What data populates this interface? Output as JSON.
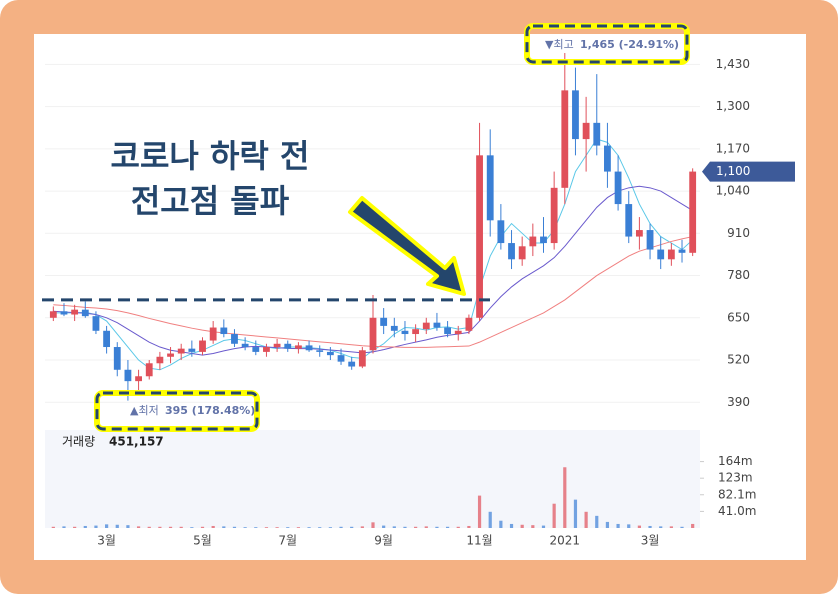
{
  "chart_data": {
    "type": "candlestick",
    "annotation_lines": [
      "코로나 하락 전",
      "전고점 돌파"
    ],
    "high_note": {
      "prefix": "▼최고",
      "text": "1,465 (-24.91%)"
    },
    "low_note": {
      "prefix": "▲최저",
      "text": "395 (178.48%)"
    },
    "volume_title": "거래량",
    "volume_info": "451,157",
    "last_price": {
      "value": 1100,
      "label": "1,100"
    },
    "reference_line": 705,
    "up_color": "#e0505a",
    "down_color": "#3a7fd5",
    "categories": [
      null,
      null,
      null,
      null,
      null,
      "3월",
      null,
      null,
      null,
      null,
      null,
      null,
      null,
      null,
      "5월",
      null,
      null,
      null,
      null,
      null,
      null,
      null,
      "7월",
      null,
      null,
      null,
      null,
      null,
      null,
      null,
      null,
      "9월",
      null,
      null,
      null,
      null,
      null,
      null,
      null,
      null,
      "11월",
      null,
      null,
      null,
      null,
      null,
      null,
      null,
      "2021",
      null,
      null,
      null,
      null,
      null,
      null,
      null,
      "3월",
      null,
      null,
      null,
      null
    ],
    "open": [
      650,
      670,
      660,
      675,
      655,
      610,
      560,
      490,
      455,
      470,
      510,
      530,
      540,
      555,
      545,
      580,
      620,
      600,
      570,
      560,
      545,
      560,
      570,
      555,
      565,
      550,
      545,
      535,
      515,
      500,
      550,
      650,
      625,
      610,
      600,
      615,
      635,
      620,
      600,
      610,
      650,
      1150,
      950,
      880,
      830,
      870,
      900,
      880,
      1050,
      1350,
      1200,
      1250,
      1180,
      1100,
      1000,
      900,
      920,
      860,
      830,
      860,
      850
    ],
    "high": [
      685,
      695,
      690,
      700,
      670,
      625,
      575,
      520,
      490,
      520,
      545,
      560,
      570,
      580,
      590,
      640,
      645,
      615,
      590,
      580,
      570,
      585,
      580,
      575,
      580,
      565,
      560,
      555,
      530,
      560,
      720,
      680,
      650,
      640,
      630,
      650,
      665,
      640,
      625,
      660,
      1250,
      1230,
      1000,
      920,
      900,
      940,
      960,
      1100,
      1465,
      1420,
      1330,
      1400,
      1250,
      1150,
      1040,
      960,
      940,
      900,
      880,
      890,
      1110
    ],
    "low": [
      640,
      655,
      640,
      650,
      600,
      540,
      470,
      395,
      420,
      460,
      490,
      510,
      520,
      530,
      535,
      570,
      590,
      560,
      550,
      535,
      530,
      545,
      545,
      540,
      545,
      530,
      520,
      505,
      490,
      495,
      540,
      600,
      590,
      580,
      575,
      600,
      610,
      590,
      580,
      600,
      640,
      900,
      860,
      800,
      810,
      840,
      850,
      860,
      1000,
      1150,
      1100,
      1150,
      1050,
      980,
      880,
      860,
      830,
      800,
      810,
      820,
      840
    ],
    "close": [
      670,
      660,
      675,
      655,
      610,
      560,
      490,
      455,
      470,
      510,
      530,
      540,
      555,
      545,
      580,
      620,
      600,
      570,
      560,
      545,
      560,
      570,
      555,
      565,
      550,
      545,
      535,
      515,
      500,
      550,
      650,
      625,
      610,
      600,
      615,
      635,
      620,
      600,
      610,
      650,
      1150,
      950,
      880,
      830,
      870,
      900,
      880,
      1050,
      1350,
      1200,
      1250,
      1180,
      1100,
      1000,
      900,
      920,
      860,
      830,
      860,
      850,
      1100
    ],
    "series": [
      {
        "color": "#5bc8e8",
        "values": [
          665,
          665,
          665,
          667,
          660,
          640,
          600,
          560,
          520,
          495,
          490,
          505,
          525,
          540,
          550,
          565,
          580,
          585,
          580,
          570,
          560,
          555,
          560,
          560,
          558,
          555,
          550,
          540,
          528,
          525,
          550,
          570,
          600,
          620,
          618,
          612,
          620,
          622,
          615,
          620,
          740,
          840,
          900,
          940,
          910,
          880,
          880,
          920,
          1000,
          1100,
          1150,
          1200,
          1190,
          1150,
          1080,
          1000,
          940,
          900,
          880,
          860,
          890
        ]
      },
      {
        "color": "#6a5acd",
        "values": [
          670,
          668,
          666,
          664,
          660,
          650,
          635,
          615,
          595,
          575,
          560,
          550,
          545,
          540,
          535,
          540,
          548,
          555,
          560,
          562,
          560,
          558,
          556,
          555,
          555,
          553,
          551,
          548,
          545,
          542,
          545,
          552,
          560,
          568,
          575,
          582,
          590,
          596,
          600,
          605,
          640,
          680,
          715,
          745,
          770,
          790,
          810,
          835,
          870,
          910,
          950,
          990,
          1020,
          1040,
          1050,
          1055,
          1050,
          1040,
          1020,
          1000,
          980
        ]
      },
      {
        "color": "#f08080",
        "values": [
          690,
          688,
          685,
          682,
          680,
          677,
          672,
          665,
          657,
          648,
          640,
          632,
          625,
          618,
          612,
          607,
          603,
          600,
          597,
          594,
          591,
          588,
          585,
          582,
          579,
          576,
          573,
          570,
          567,
          564,
          562,
          561,
          560,
          559,
          559,
          559,
          560,
          561,
          562,
          563,
          575,
          590,
          605,
          620,
          635,
          650,
          665,
          685,
          705,
          730,
          755,
          780,
          800,
          820,
          840,
          855,
          865,
          875,
          885,
          893,
          900
        ]
      }
    ],
    "ylim": [
      320,
      1505
    ],
    "yticks": [
      390,
      650,
      780,
      910,
      {
        "value": 1040,
        "label": "1,040"
      },
      {
        "value": 1170,
        "label": "1,170"
      },
      {
        "value": 1300,
        "label": "1,300"
      },
      {
        "value": 1430,
        "label": "1,430"
      },
      520
    ],
    "grid": true,
    "volume": [
      3,
      4,
      3,
      5,
      6,
      9,
      8,
      7,
      4,
      3,
      3,
      3,
      3,
      2,
      3,
      5,
      4,
      3,
      2,
      2,
      2,
      2,
      2,
      2,
      2,
      2,
      2,
      3,
      3,
      4,
      14,
      6,
      4,
      3,
      3,
      4,
      3,
      3,
      3,
      5,
      80,
      40,
      18,
      10,
      8,
      7,
      6,
      60,
      150,
      70,
      40,
      30,
      15,
      10,
      9,
      6,
      5,
      4,
      4,
      3,
      10
    ],
    "vlim": [
      0,
      242
    ],
    "vticks": [
      {
        "value": 41,
        "label": "41.0m"
      },
      {
        "value": 82.1,
        "label": "82.1m"
      },
      {
        "value": 123,
        "label": "123m"
      },
      {
        "value": 164,
        "label": "164m"
      }
    ]
  }
}
